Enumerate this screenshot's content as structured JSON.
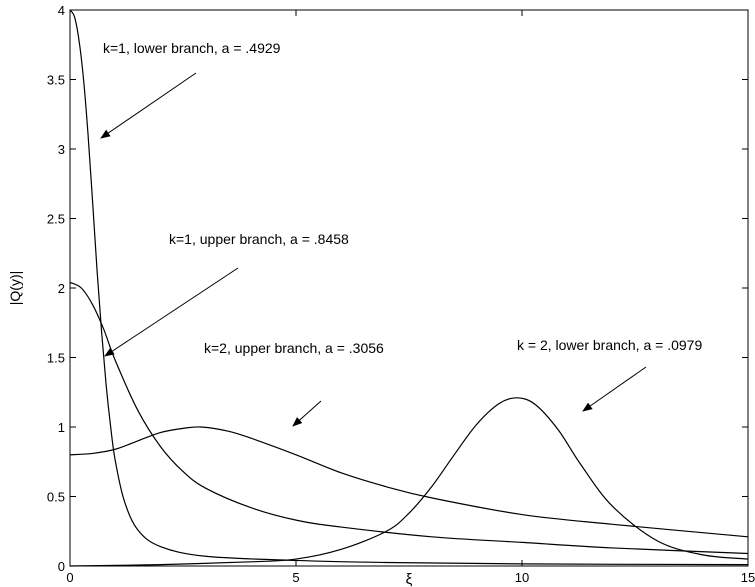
{
  "chart_data": {
    "type": "line",
    "title": "",
    "xlabel": "ξ",
    "ylabel": "|Q(y)|",
    "xlim": [
      0,
      15
    ],
    "ylim": [
      0,
      4
    ],
    "xticks": [
      "0",
      "5",
      "10",
      "15"
    ],
    "yticks": [
      "0",
      "0.5",
      "1",
      "1.5",
      "2",
      "2.5",
      "3",
      "3.5",
      "4"
    ],
    "grid": false,
    "legend": "none",
    "line_color": "#000000",
    "series": [
      {
        "name": "k=1, lower branch, a = .4929",
        "x": [
          0,
          0.1,
          0.2,
          0.3,
          0.4,
          0.5,
          0.6,
          0.7,
          0.8,
          0.9,
          1.0,
          1.2,
          1.5,
          2,
          3,
          5,
          7,
          10,
          15
        ],
        "y": [
          4.0,
          3.95,
          3.78,
          3.5,
          3.1,
          2.62,
          2.12,
          1.68,
          1.3,
          1.0,
          0.76,
          0.47,
          0.26,
          0.14,
          0.07,
          0.04,
          0.025,
          0.015,
          0.01
        ]
      },
      {
        "name": "k=1, upper branch, a = .8458",
        "x": [
          0,
          0.25,
          0.5,
          0.75,
          1.0,
          1.5,
          2,
          2.5,
          3,
          4,
          5,
          6,
          8,
          10,
          12,
          15
        ],
        "y": [
          2.04,
          2.0,
          1.88,
          1.7,
          1.48,
          1.12,
          0.86,
          0.68,
          0.56,
          0.42,
          0.33,
          0.28,
          0.21,
          0.17,
          0.13,
          0.09
        ]
      },
      {
        "name": "k=2, upper branch, a = .3056",
        "x": [
          0,
          0.5,
          1.0,
          1.5,
          2.0,
          2.5,
          2.9,
          3.5,
          4.0,
          5,
          6,
          7,
          8,
          10,
          12,
          15
        ],
        "y": [
          0.8,
          0.81,
          0.84,
          0.9,
          0.96,
          0.99,
          1.0,
          0.97,
          0.92,
          0.8,
          0.67,
          0.57,
          0.49,
          0.37,
          0.3,
          0.21
        ]
      },
      {
        "name": "k = 2, lower branch, a = .0979",
        "x": [
          0,
          2,
          4,
          5,
          6,
          7,
          7.5,
          8,
          8.5,
          9,
          9.5,
          9.9,
          10.3,
          10.8,
          11.3,
          12,
          13,
          14,
          15
        ],
        "y": [
          0.0,
          0.01,
          0.03,
          0.05,
          0.12,
          0.25,
          0.38,
          0.57,
          0.8,
          1.02,
          1.17,
          1.21,
          1.16,
          0.98,
          0.73,
          0.43,
          0.18,
          0.08,
          0.05
        ]
      }
    ],
    "annotations": [
      {
        "text": "k=1, lower branch, a = .4929",
        "series": 0,
        "point": [
          0.15,
          3.02
        ]
      },
      {
        "text": "k=1, upper branch, a = .8458",
        "series": 1,
        "point": [
          1.45,
          1.42
        ]
      },
      {
        "text": "k=2, upper branch, a = .3056",
        "series": 2,
        "point": [
          4.75,
          0.89
        ]
      },
      {
        "text": "k = 2, lower branch, a = .0979",
        "series": 3,
        "point": [
          10.95,
          0.97
        ]
      }
    ]
  }
}
